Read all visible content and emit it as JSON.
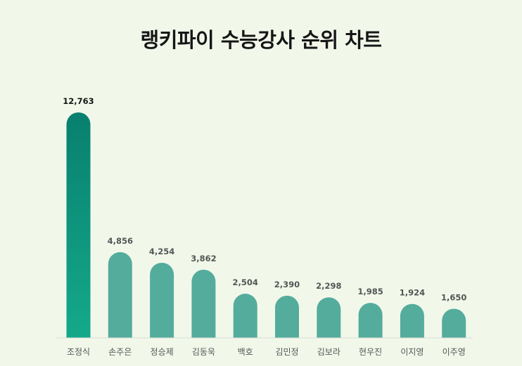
{
  "chart_data": {
    "type": "bar",
    "title": "랭키파이 수능강사 순위 차트",
    "categories": [
      "조정식",
      "손주은",
      "정승제",
      "김동욱",
      "백호",
      "김민정",
      "김보라",
      "현우진",
      "이지영",
      "이주영"
    ],
    "value_labels": [
      "12,763",
      "4,856",
      "4,254",
      "3,862",
      "2,504",
      "2,390",
      "2,298",
      "1,985",
      "1,924",
      "1,650"
    ],
    "values": [
      12763,
      4856,
      4254,
      3862,
      2504,
      2390,
      2298,
      1985,
      1924,
      1650
    ],
    "xlabel": "",
    "ylabel": "",
    "ylim": [
      0,
      12763
    ],
    "grid": false,
    "legend": "none",
    "colors": {
      "top_bar_gradient_start": "#08806f",
      "top_bar_gradient_end": "#14a98a",
      "bar": "#54ac9c",
      "baseline": "#d6dcd2",
      "value_label_top": "#161616",
      "value_label": "#555555",
      "category_label": "#555555",
      "background": "#f1f8ea"
    }
  }
}
